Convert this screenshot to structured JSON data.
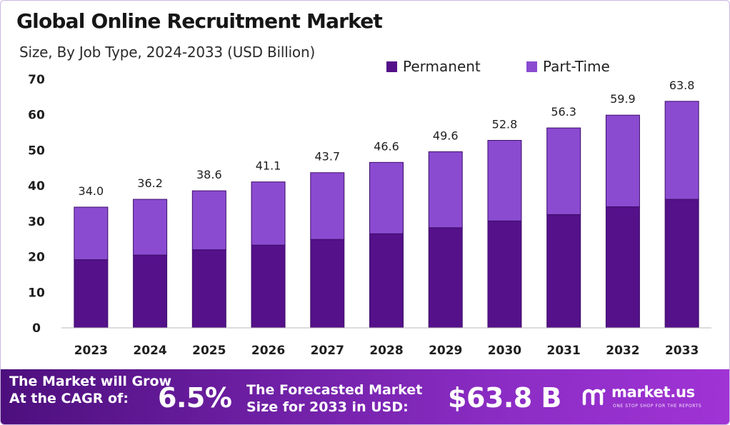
{
  "header": {
    "title": "Global Online Recruitment Market",
    "subtitle": "Size, By Job Type, 2024-2033 (USD Billion)"
  },
  "colors": {
    "permanent": "#541189",
    "part_time": "#8a4bd1",
    "banner_start": "#4d0f7d",
    "banner_end": "#a033d5"
  },
  "chart_data": {
    "type": "bar",
    "stacked": true,
    "categories": [
      "2023",
      "2024",
      "2025",
      "2026",
      "2027",
      "2028",
      "2029",
      "2030",
      "2031",
      "2032",
      "2033"
    ],
    "series": [
      {
        "name": "Permanent",
        "color": "#541189",
        "values": [
          19.2,
          20.5,
          22.0,
          23.3,
          24.9,
          26.5,
          28.2,
          30.1,
          31.9,
          34.1,
          36.2
        ]
      },
      {
        "name": "Part-Time",
        "color": "#8a4bd1",
        "values": [
          14.8,
          15.7,
          16.6,
          17.8,
          18.8,
          20.1,
          21.4,
          22.7,
          24.4,
          25.8,
          27.6
        ]
      }
    ],
    "totals": [
      34.0,
      36.2,
      38.6,
      41.1,
      43.7,
      46.6,
      49.6,
      52.8,
      56.3,
      59.9,
      63.8
    ],
    "total_labels": [
      "34.0",
      "36.2",
      "38.6",
      "41.1",
      "43.7",
      "46.6",
      "49.6",
      "52.8",
      "56.3",
      "59.9",
      "63.8"
    ],
    "title": "Global Online Recruitment Market",
    "subtitle": "Size, By Job Type, 2024-2033 (USD Billion)",
    "xlabel": "",
    "ylabel": "",
    "ylim": [
      0,
      70
    ],
    "yticks": [
      0,
      10,
      20,
      30,
      40,
      50,
      60,
      70
    ],
    "grid": false,
    "legend_position": "top-right"
  },
  "banner": {
    "cagr_line1": "The Market will Grow",
    "cagr_line2": "At the CAGR of:",
    "cagr_value": "6.5%",
    "forecast_line1": "The Forecasted Market",
    "forecast_line2": "Size for 2033 in USD:",
    "forecast_value": "$63.8 B",
    "logo_name": "market.us",
    "logo_tagline": "ONE STOP SHOP FOR THE REPORTS",
    "logo_icon": "market-us-logo-icon"
  }
}
